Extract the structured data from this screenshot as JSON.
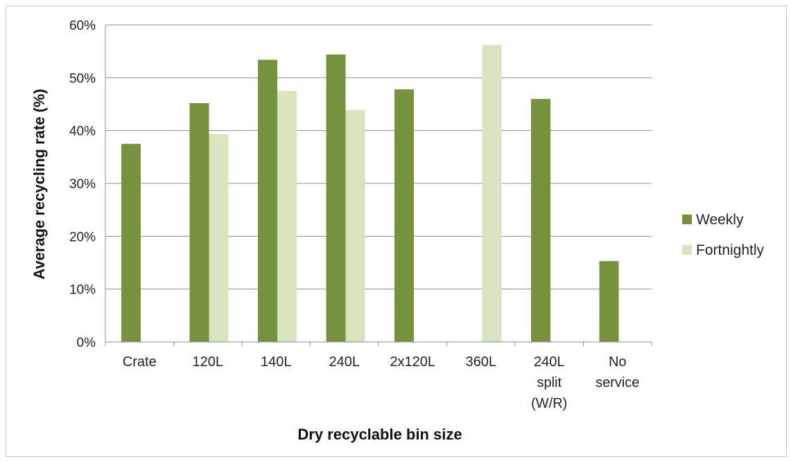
{
  "chart_data": {
    "type": "bar",
    "title": "",
    "xlabel": "Dry recyclable bin size",
    "ylabel": "Average recycling rate (%)",
    "ylim": [
      0,
      60
    ],
    "yticks": [
      "0%",
      "10%",
      "20%",
      "30%",
      "40%",
      "50%",
      "60%"
    ],
    "grid": true,
    "legend_position": "right",
    "categories": [
      [
        "Crate"
      ],
      [
        "120L"
      ],
      [
        "140L"
      ],
      [
        "240L"
      ],
      [
        "2x120L"
      ],
      [
        "360L"
      ],
      [
        "240L",
        "split",
        "(W/R)"
      ],
      [
        "No",
        "service"
      ]
    ],
    "series": [
      {
        "name": "Weekly",
        "color": "#76923c",
        "values": [
          37.5,
          45.2,
          53.4,
          54.4,
          47.8,
          null,
          46.0,
          15.3
        ]
      },
      {
        "name": "Fortnightly",
        "color": "#d7e4bd",
        "values": [
          null,
          39.3,
          47.5,
          43.9,
          null,
          56.2,
          null,
          null
        ]
      }
    ]
  }
}
